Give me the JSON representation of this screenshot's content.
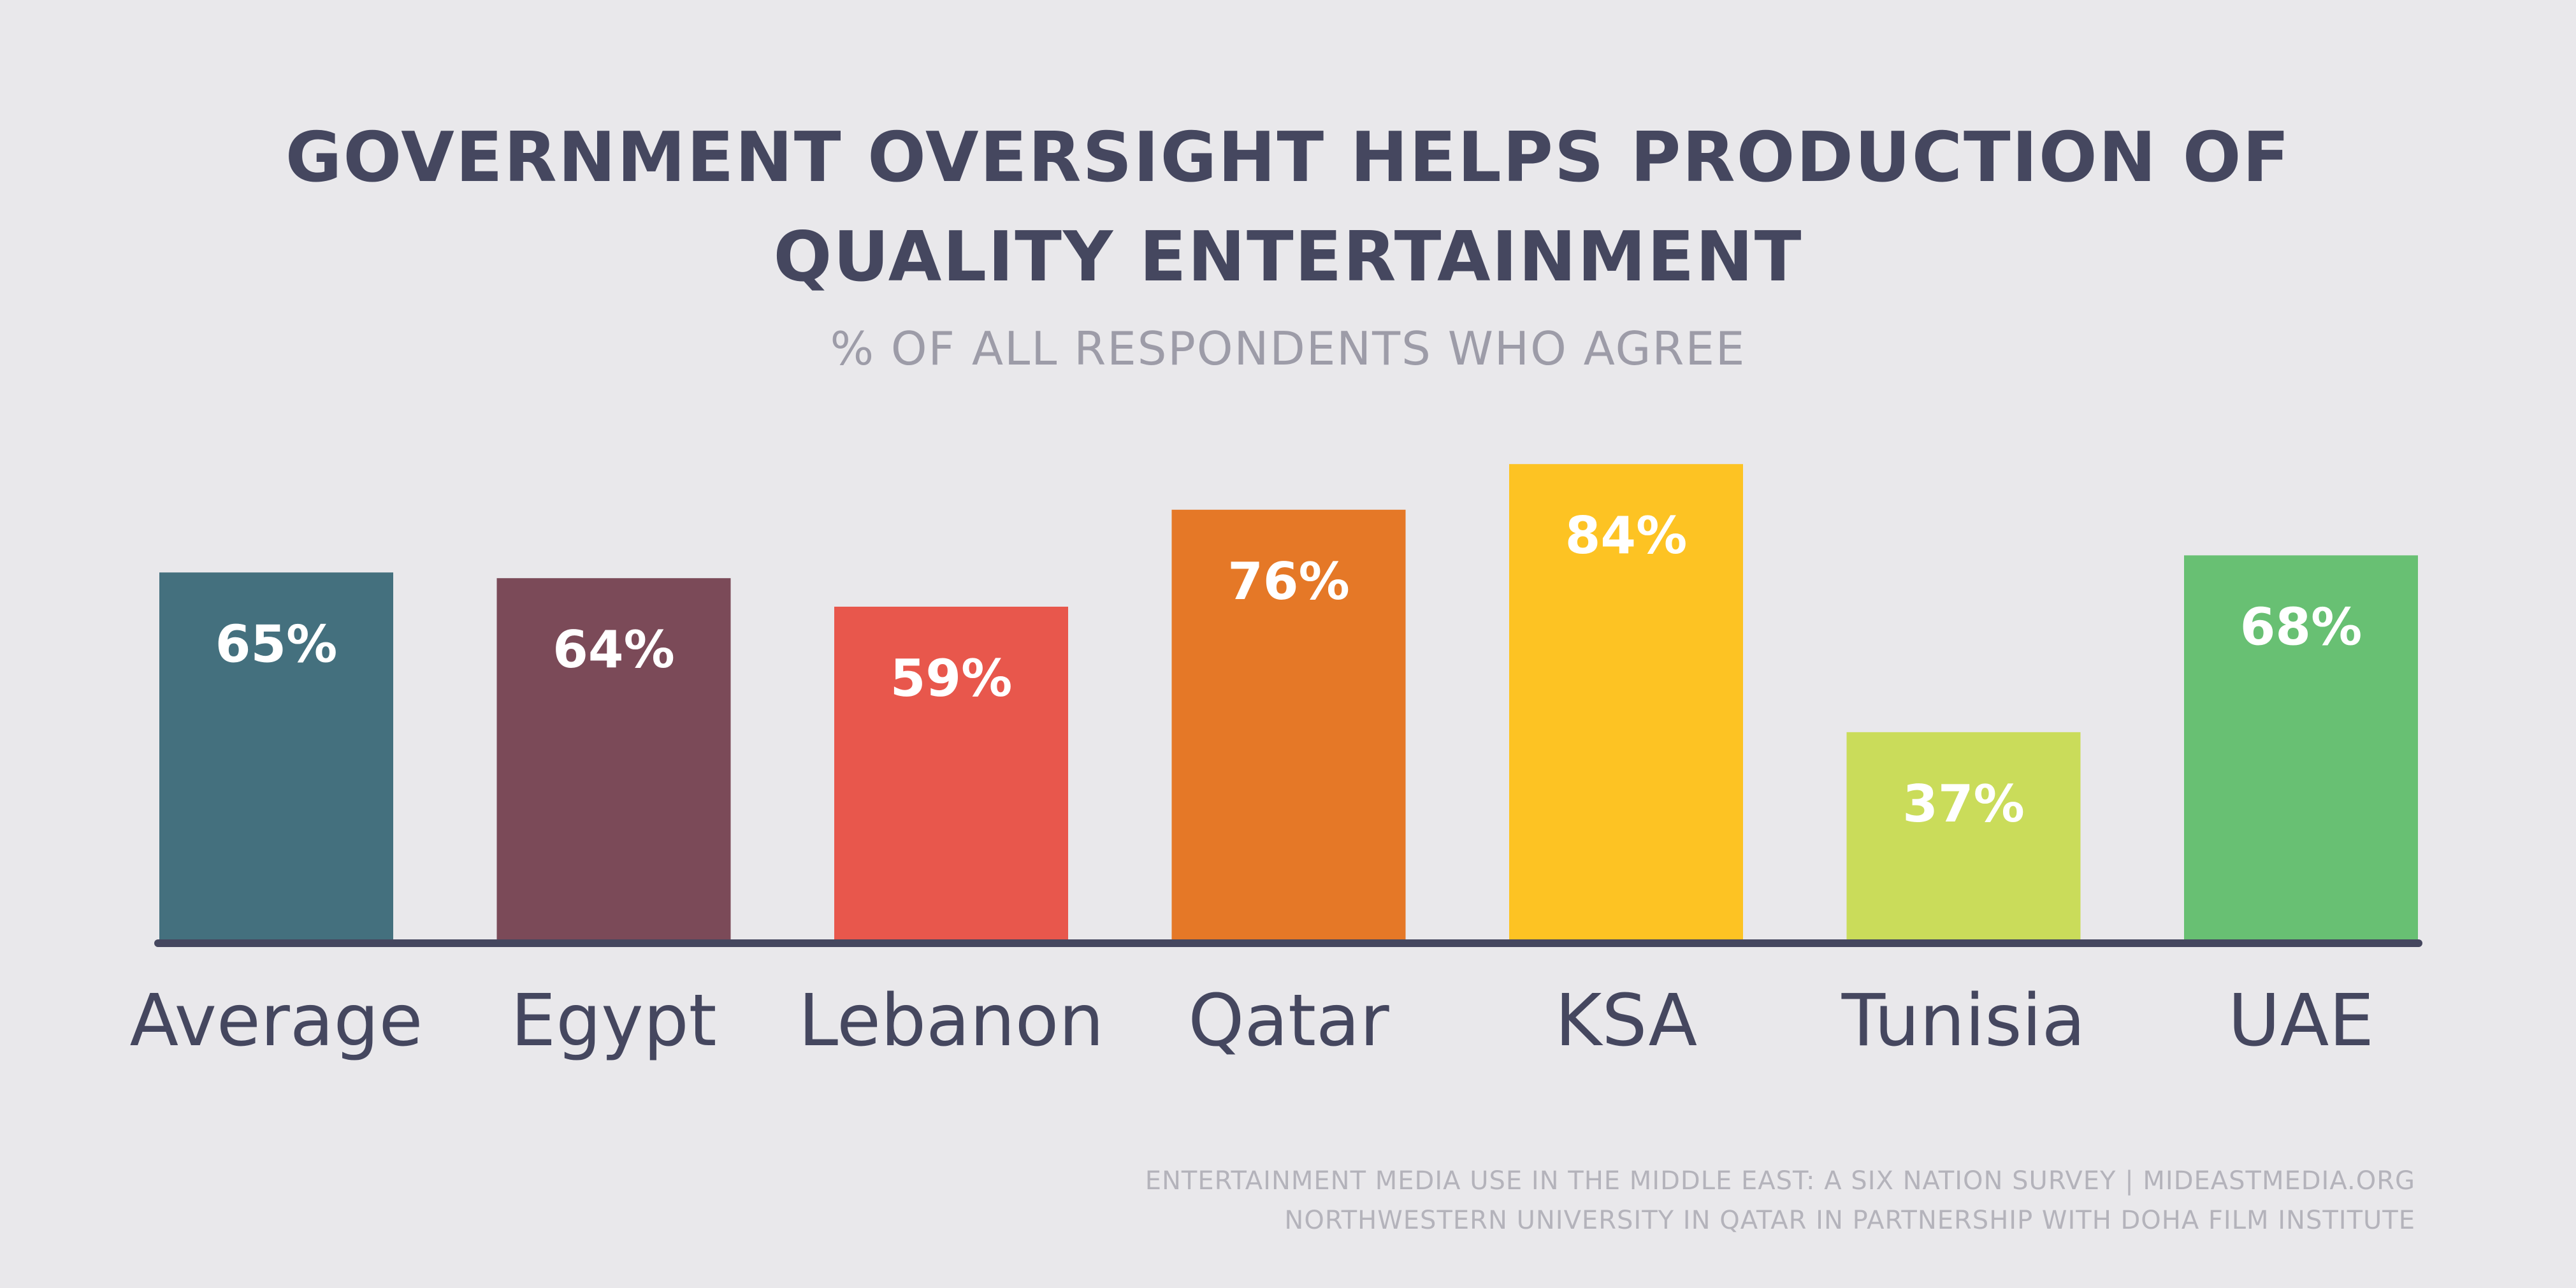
{
  "chart_data": {
    "type": "bar",
    "title_lines": [
      "GOVERNMENT OVERSIGHT HELPS PRODUCTION OF",
      "QUALITY ENTERTAINMENT"
    ],
    "subtitle": "% OF ALL RESPONDENTS WHO AGREE",
    "categories": [
      "Average",
      "Egypt",
      "Lebanon",
      "Qatar",
      "KSA",
      "Tunisia",
      "UAE"
    ],
    "values": [
      65,
      64,
      59,
      76,
      84,
      37,
      68
    ],
    "value_labels": [
      "65%",
      "64%",
      "59%",
      "76%",
      "84%",
      "37%",
      "68%"
    ],
    "colors": [
      "#44707e",
      "#7b4a58",
      "#e8574c",
      "#e57827",
      "#fdc323",
      "#cadc5a",
      "#68c073"
    ],
    "ylim": [
      0,
      100
    ],
    "grid": false,
    "legend": "none"
  },
  "source": {
    "line1": "ENTERTAINMENT MEDIA USE IN THE MIDDLE EAST: A SIX NATION SURVEY | MIDEASTMEDIA.ORG",
    "line2": "NORTHWESTERN UNIVERSITY IN QATAR IN PARTNERSHIP WITH DOHA FILM INSTITUTE"
  }
}
